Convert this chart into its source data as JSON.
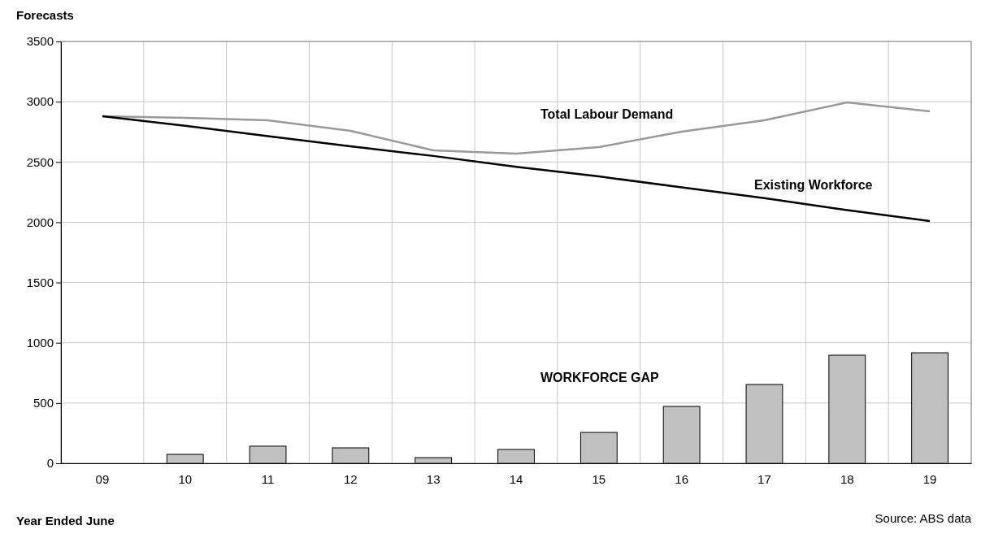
{
  "chart_data": {
    "type": "line",
    "xlabel": "Year Ended June",
    "ylabel": "Forecasts",
    "categories": [
      "09",
      "10",
      "11",
      "12",
      "13",
      "14",
      "15",
      "16",
      "17",
      "18",
      "19"
    ],
    "series": [
      {
        "name": "WORKFORCE GAP",
        "type": "bar",
        "color": "#c0c0c0",
        "values": [
          0,
          74,
          142,
          128,
          47,
          115,
          256,
          472,
          654,
          897,
          917
        ]
      },
      {
        "name": "Total Labour Demand",
        "color": "#999999",
        "values": [
          2880,
          2866,
          2846,
          2758,
          2596,
          2569,
          2623,
          2751,
          2846,
          2994,
          2920
        ]
      },
      {
        "name": "Existing Workforce",
        "color": "#000000",
        "values": [
          2880,
          2800,
          2715,
          2630,
          2550,
          2460,
          2380,
          2290,
          2200,
          2100,
          2010
        ]
      }
    ],
    "ylim": [
      0,
      3500
    ],
    "yticks": [
      0,
      500,
      1000,
      1500,
      2000,
      2500,
      3000,
      3500
    ],
    "grid": true,
    "annotations": [
      "Source: ABS data"
    ]
  }
}
